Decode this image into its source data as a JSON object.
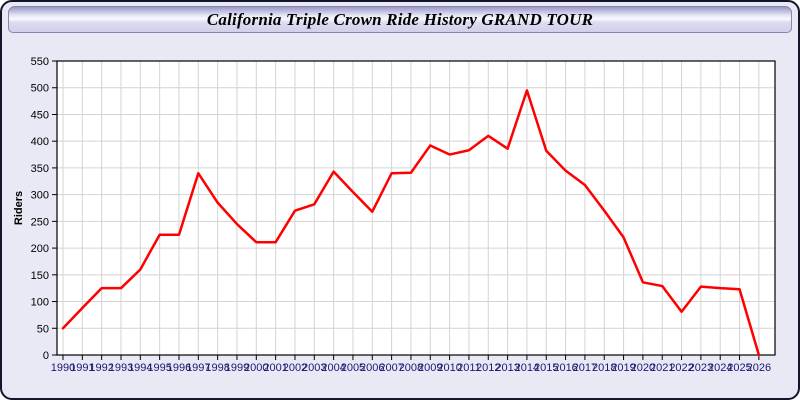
{
  "window": {
    "title": "California Triple Crown Ride History GRAND TOUR"
  },
  "chart_data": {
    "type": "line",
    "title": "California Triple Crown Ride History GRAND TOUR",
    "xlabel": "",
    "ylabel": "Riders",
    "x": [
      1990,
      1991,
      1992,
      1993,
      1994,
      1995,
      1996,
      1997,
      1998,
      1999,
      2000,
      2001,
      2002,
      2003,
      2004,
      2005,
      2006,
      2007,
      2008,
      2009,
      2010,
      2011,
      2012,
      2013,
      2014,
      2015,
      2016,
      2017,
      2018,
      2019,
      2020,
      2021,
      2022,
      2023,
      2024,
      2025,
      2026
    ],
    "series": [
      {
        "name": "Riders",
        "values": [
          50,
          88,
          125,
          125,
          160,
          225,
          225,
          340,
          285,
          245,
          211,
          211,
          270,
          282,
          343,
          305,
          268,
          340,
          341,
          392,
          375,
          383,
          410,
          386,
          495,
          382,
          345,
          318,
          270,
          220,
          136,
          129,
          81,
          128,
          125,
          123,
          0
        ]
      }
    ],
    "ylim": [
      0,
      550
    ],
    "ytick_step": 50,
    "grid": true,
    "legend": false,
    "colors": {
      "line": "#ff0000",
      "x_tick_label": "#191970",
      "y_tick_label": "#000000",
      "gridline": "#d4d4d4",
      "plot_border": "#000000",
      "plot_background": "#ffffff"
    }
  }
}
